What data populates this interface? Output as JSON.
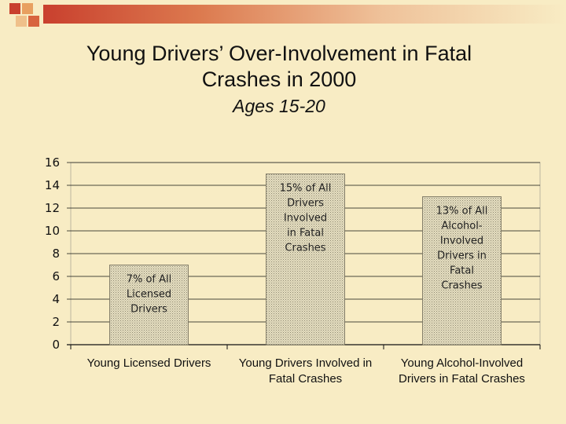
{
  "slide": {
    "title_line1": "Young Drivers’ Over-Involvement in Fatal",
    "title_line2": "Crashes in 2000",
    "subtitle": "Ages 15-20",
    "colors": {
      "background": "#f8ecc4",
      "accent_red": "#c9402e",
      "accent_orange": "#e8a060",
      "bar_fill": "#ddd5b0",
      "gridline": "#111111"
    }
  },
  "chart_data": {
    "type": "bar",
    "title": "",
    "xlabel": "",
    "ylabel": "",
    "ylim": [
      0,
      16
    ],
    "yticks": [
      0,
      2,
      4,
      6,
      8,
      10,
      12,
      14,
      16
    ],
    "grid": true,
    "legend": "none",
    "categories": [
      [
        "Young Licensed Drivers"
      ],
      [
        "Young Drivers Involved in",
        "Fatal Crashes"
      ],
      [
        "Young Alcohol-Involved",
        "Drivers in Fatal Crashes"
      ]
    ],
    "values": [
      7,
      15,
      13
    ],
    "data_labels": [
      [
        "7% of All",
        "Licensed",
        "Drivers"
      ],
      [
        "15% of All",
        "Drivers",
        "Involved",
        "in Fatal",
        "Crashes"
      ],
      [
        "13% of All",
        "Alcohol-",
        "Involved",
        "Drivers in",
        "Fatal",
        "Crashes"
      ]
    ]
  }
}
